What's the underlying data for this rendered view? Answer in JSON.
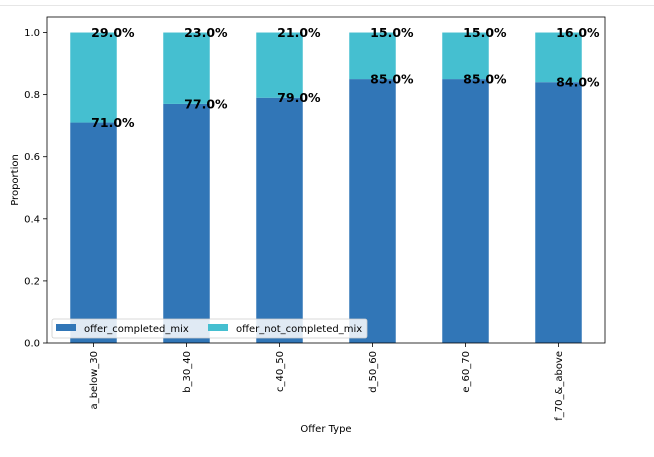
{
  "chart_data": {
    "type": "bar",
    "stacked": true,
    "categories": [
      "a_below_30",
      "b_30_40",
      "c_40_50",
      "d_50_60",
      "e_60_70",
      "f_70_&_above"
    ],
    "series": [
      {
        "name": "offer_completed_mix",
        "values": [
          0.71,
          0.77,
          0.79,
          0.85,
          0.85,
          0.84
        ],
        "color": "#3176b7",
        "labels": [
          "71.0%",
          "77.0%",
          "79.0%",
          "85.0%",
          "85.0%",
          "84.0%"
        ]
      },
      {
        "name": "offer_not_completed_mix",
        "values": [
          0.29,
          0.23,
          0.21,
          0.15,
          0.15,
          0.16
        ],
        "color": "#45bfd0",
        "labels": [
          "29.0%",
          "23.0%",
          "21.0%",
          "15.0%",
          "15.0%",
          "16.0%"
        ]
      }
    ],
    "xlabel": "Offer Type",
    "ylabel": "Proportion",
    "ylim": [
      0,
      1.05
    ],
    "yticks": [
      "0.0",
      "0.2",
      "0.4",
      "0.6",
      "0.8",
      "1.0"
    ],
    "legend_position": "lower-left",
    "grid": false
  }
}
